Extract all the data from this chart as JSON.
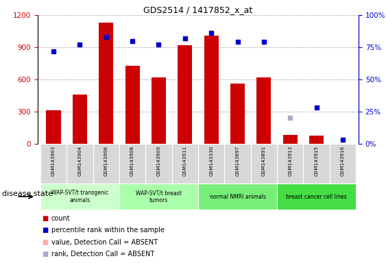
{
  "title": "GDS2514 / 1417852_x_at",
  "samples": [
    "GSM143903",
    "GSM143904",
    "GSM143906",
    "GSM143908",
    "GSM143909",
    "GSM143911",
    "GSM143330",
    "GSM143697",
    "GSM143891",
    "GSM143913",
    "GSM143915",
    "GSM143916"
  ],
  "bar_values": [
    310,
    460,
    1130,
    730,
    620,
    920,
    1010,
    560,
    620,
    80,
    75,
    30
  ],
  "scatter_values": [
    72,
    77,
    83,
    80,
    77,
    82,
    86,
    79,
    79,
    30,
    28,
    3
  ],
  "absent_bar": [
    null,
    null,
    null,
    null,
    null,
    null,
    null,
    null,
    null,
    null,
    null,
    2
  ],
  "absent_scatter": [
    null,
    null,
    null,
    null,
    null,
    null,
    null,
    null,
    null,
    20,
    null,
    null
  ],
  "bar_color": "#cc0000",
  "scatter_color": "#0000cc",
  "absent_bar_color": "#ffaaaa",
  "absent_scatter_color": "#aaaacc",
  "ylim_left": [
    0,
    1200
  ],
  "ylim_right": [
    0,
    100
  ],
  "yticks_left": [
    0,
    300,
    600,
    900,
    1200
  ],
  "yticks_right": [
    0,
    25,
    50,
    75,
    100
  ],
  "groups": [
    {
      "label": "WAP-SVT/t transgenic\nanimals",
      "start": 0,
      "end": 3,
      "color": "#ccffcc"
    },
    {
      "label": "WAP-SVT/t breast\ntumors",
      "start": 3,
      "end": 6,
      "color": "#aaffaa"
    },
    {
      "label": "normal NMRI animals",
      "start": 6,
      "end": 9,
      "color": "#77ee77"
    },
    {
      "label": "breast cancer cell lines",
      "start": 9,
      "end": 12,
      "color": "#44dd44"
    }
  ],
  "disease_state_label": "disease state",
  "legend_items": [
    {
      "label": "count",
      "color": "#cc0000"
    },
    {
      "label": "percentile rank within the sample",
      "color": "#0000cc"
    },
    {
      "label": "value, Detection Call = ABSENT",
      "color": "#ffaaaa"
    },
    {
      "label": "rank, Detection Call = ABSENT",
      "color": "#aaaacc"
    }
  ]
}
